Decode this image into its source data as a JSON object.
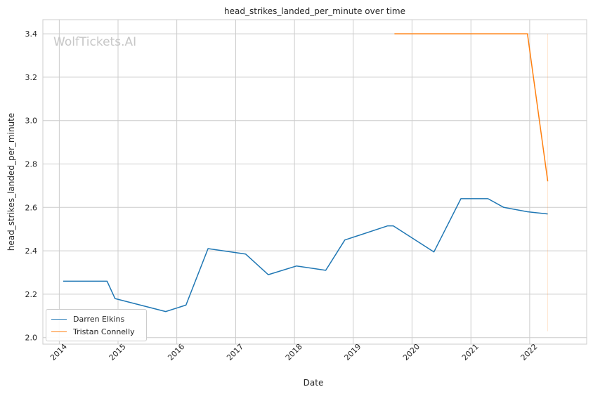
{
  "watermark": "WolfTickets.AI",
  "chart_data": {
    "type": "line",
    "title": "head_strikes_landed_per_minute over time",
    "xlabel": "Date",
    "ylabel": "head_strikes_landed_per_minute",
    "xlim": [
      "2013-09-21",
      "2022-12-21"
    ],
    "ylim": [
      1.97,
      3.465
    ],
    "xticks": [
      "2014-01-01",
      "2015-01-01",
      "2016-01-01",
      "2017-01-01",
      "2018-01-01",
      "2019-01-01",
      "2020-01-01",
      "2021-01-01",
      "2022-01-01"
    ],
    "xtick_labels": [
      "2014",
      "2015",
      "2016",
      "2017",
      "2018",
      "2019",
      "2020",
      "2021",
      "2022"
    ],
    "yticks": [
      2.0,
      2.2,
      2.4,
      2.6,
      2.8,
      3.0,
      3.2,
      3.4
    ],
    "ytick_labels": [
      "2.0",
      "2.2",
      "2.4",
      "2.6",
      "2.8",
      "3.0",
      "3.2",
      "3.4"
    ],
    "grid": true,
    "legend_position": "lower-left",
    "series": [
      {
        "name": "Darren Elkins",
        "color": "#1f77b4",
        "points": [
          [
            "2014-01-25",
            2.26
          ],
          [
            "2014-05-20",
            2.26
          ],
          [
            "2014-10-25",
            2.26
          ],
          [
            "2014-12-13",
            2.18
          ],
          [
            "2015-10-24",
            2.12
          ],
          [
            "2016-02-27",
            2.15
          ],
          [
            "2016-07-13",
            2.41
          ],
          [
            "2017-03-04",
            2.385
          ],
          [
            "2017-07-22",
            2.29
          ],
          [
            "2018-01-14",
            2.33
          ],
          [
            "2018-07-14",
            2.31
          ],
          [
            "2018-11-10",
            2.45
          ],
          [
            "2019-08-03",
            2.515
          ],
          [
            "2019-09-07",
            2.515
          ],
          [
            "2020-05-16",
            2.395
          ],
          [
            "2020-10-31",
            2.64
          ],
          [
            "2021-04-17",
            2.64
          ],
          [
            "2021-07-24",
            2.6
          ],
          [
            "2021-12-18",
            2.58
          ],
          [
            "2022-04-23",
            2.57
          ]
        ]
      },
      {
        "name": "Tristan Connelly",
        "color": "#ff7f0e",
        "points": [
          [
            "2019-09-14",
            3.4
          ],
          [
            "2020-06-01",
            3.4
          ],
          [
            "2021-06-01",
            3.4
          ],
          [
            "2021-12-18",
            3.4
          ],
          [
            "2022-04-23",
            2.72
          ]
        ],
        "band": {
          "x": "2022-04-23",
          "y_range": [
            2.03,
            3.4
          ],
          "opacity": 0.2
        }
      }
    ]
  }
}
